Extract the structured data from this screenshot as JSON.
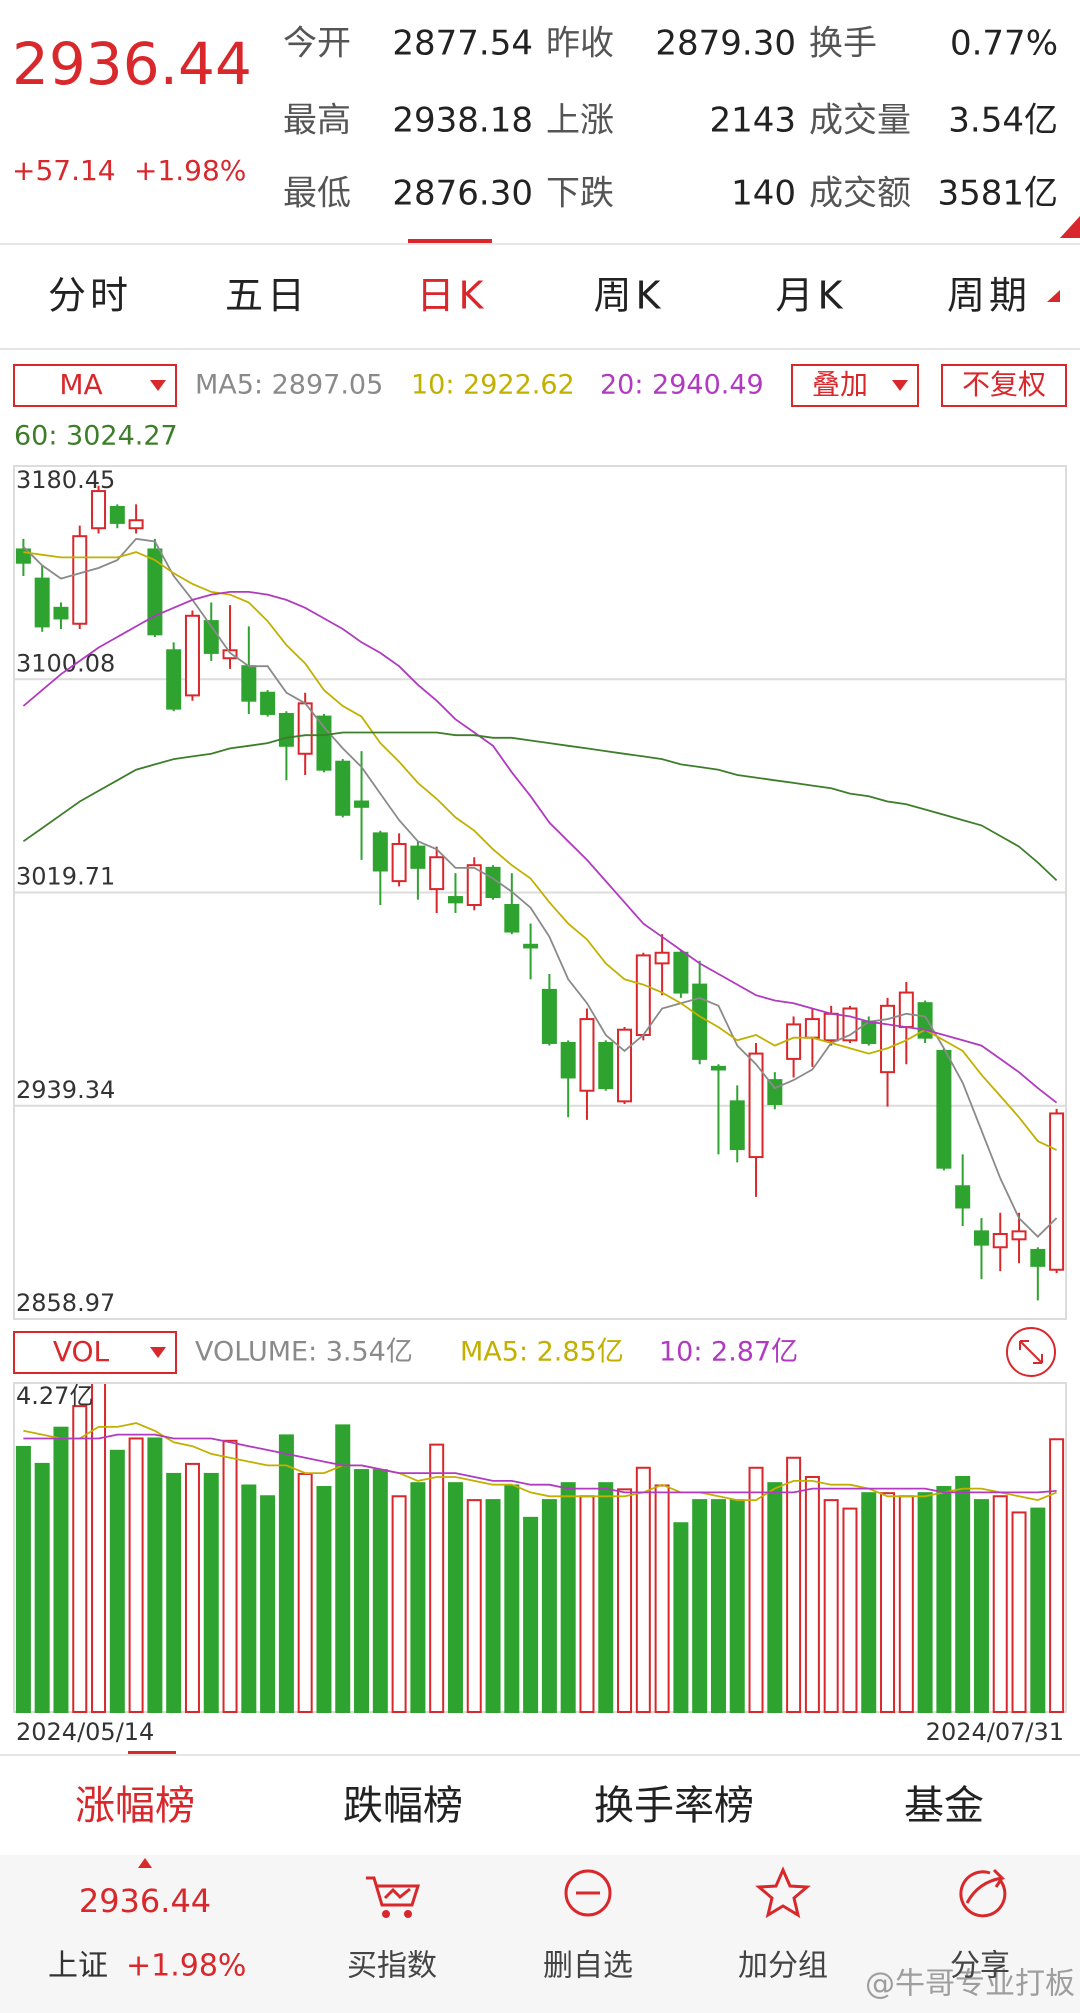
{
  "header": {
    "price": "2936.44",
    "change": "+57.14",
    "change_pct": "+1.98%",
    "stats": [
      [
        [
          "今开",
          "2877.54"
        ],
        [
          "昨收",
          "2879.30"
        ],
        [
          "换手",
          "0.77%"
        ]
      ],
      [
        [
          "最高",
          "2938.18"
        ],
        [
          "上涨",
          "2143"
        ],
        [
          "成交量",
          "3.54亿"
        ]
      ],
      [
        [
          "最低",
          "2876.30"
        ],
        [
          "下跌",
          "140"
        ],
        [
          "成交额",
          "3581亿"
        ]
      ]
    ]
  },
  "tabs": {
    "items": [
      "分时",
      "五日",
      "日K",
      "周K",
      "月K",
      "周期"
    ],
    "active": 2
  },
  "controls": {
    "indicator": "MA",
    "overlay": "叠加",
    "adjust": "不复权",
    "volume_indicator": "VOL"
  },
  "chart_data": [
    {
      "type": "candlestick",
      "up_color": "#d8282c",
      "down_color": "#2fa32f",
      "grid": true,
      "categories": [
        "2024/05/14",
        null,
        null,
        null,
        null,
        null,
        null,
        null,
        null,
        null,
        null,
        null,
        null,
        null,
        null,
        null,
        null,
        null,
        null,
        null,
        null,
        null,
        null,
        null,
        null,
        null,
        null,
        null,
        null,
        null,
        null,
        null,
        null,
        null,
        null,
        null,
        null,
        null,
        null,
        null,
        null,
        null,
        null,
        null,
        null,
        null,
        null,
        null,
        null,
        null,
        null,
        null,
        null,
        null,
        null,
        "2024/07/31"
      ],
      "open": [
        3149,
        3138,
        3127,
        3121,
        3157,
        3165,
        3157,
        3149,
        3111,
        3094,
        3122,
        3108,
        3105,
        3095,
        3087,
        3072,
        3086,
        3069,
        3054,
        3042,
        3024,
        3037,
        3021,
        3018,
        3015,
        3029,
        3015,
        3000,
        2983,
        2963,
        2945,
        2963,
        2941,
        2966,
        2993,
        2997,
        2985,
        2954,
        2941,
        2920,
        2949,
        2957,
        2965,
        2964,
        2964,
        2971,
        2952,
        2969,
        2978,
        2960,
        2909,
        2892,
        2886,
        2889,
        2885,
        2877.54
      ],
      "high": [
        3153,
        3143,
        3129,
        3158,
        3173,
        3166,
        3166,
        3153,
        3114,
        3126,
        3129,
        3128,
        3120,
        3096,
        3088,
        3095,
        3087,
        3070,
        3073,
        3043,
        3042,
        3039,
        3037,
        3027,
        3033,
        3030,
        3027,
        3008,
        2989,
        2964,
        2976,
        2964,
        2969,
        2997,
        3004,
        2998,
        2994,
        2955,
        2947,
        2963,
        2952,
        2973,
        2976,
        2977,
        2977,
        2973,
        2980,
        2986,
        2979,
        2961,
        2921,
        2897,
        2899,
        2899,
        2886,
        2938.18
      ],
      "low": [
        3139,
        3118,
        3119,
        3119,
        3155,
        3157,
        3155,
        3116,
        3088,
        3092,
        3107,
        3104,
        3087,
        3086,
        3062,
        3064,
        3065,
        3048,
        3032,
        3015,
        3022,
        3017,
        3012,
        3012,
        3013,
        3017,
        3004,
        2987,
        2962,
        2935,
        2934,
        2945,
        2940,
        2964,
        2981,
        2980,
        2955,
        2921,
        2918,
        2905,
        2938,
        2950,
        2954,
        2962,
        2963,
        2962,
        2939,
        2955,
        2963,
        2915,
        2894,
        2874,
        2877,
        2880,
        2866,
        2876.3
      ],
      "close": [
        3144,
        3120,
        3123,
        3154,
        3171,
        3159,
        3160,
        3117,
        3089,
        3124,
        3110,
        3111,
        3092,
        3087,
        3075,
        3091,
        3066,
        3049,
        3052,
        3028,
        3038,
        3029,
        3033,
        3016,
        3030,
        3018,
        3005,
        2999,
        2963,
        2950,
        2972,
        2946,
        2968,
        2996,
        2997,
        2982,
        2957,
        2953,
        2923,
        2959,
        2940,
        2970,
        2972,
        2974,
        2976,
        2963,
        2977,
        2982,
        2965,
        2916,
        2901,
        2887,
        2891,
        2892,
        2879,
        2936.44
      ],
      "ylim": [
        2858.97,
        3180.45
      ],
      "yticks": [
        2858.97,
        2939.34,
        3019.71,
        3100.08,
        3180.45
      ],
      "series": [
        {
          "name": "MA5: 2897.05",
          "color": "#8a8a8a",
          "values": [
            3150,
            3143,
            3138,
            3140,
            3142,
            3145,
            3153,
            3152,
            3139,
            3130,
            3120,
            3110,
            3105,
            3105,
            3095,
            3091,
            3082,
            3074,
            3067,
            3057,
            3047,
            3039,
            3036,
            3029,
            3029,
            3025,
            3020,
            3014,
            3003,
            2987,
            2978,
            2966,
            2960,
            2966,
            2976,
            2978,
            2980,
            2977,
            2962,
            2955,
            2946,
            2949,
            2953,
            2963,
            2966,
            2971,
            2972,
            2974,
            2973,
            2961,
            2948,
            2930,
            2912,
            2897,
            2890,
            2897.05
          ]
        },
        {
          "name": "10: 2922.62",
          "color": "#c2b000",
          "values": [
            3148,
            3147,
            3146,
            3146,
            3146,
            3146,
            3148,
            3145,
            3140,
            3136,
            3133,
            3132,
            3129,
            3122,
            3113,
            3106,
            3096,
            3090,
            3086,
            3076,
            3069,
            3061,
            3055,
            3048,
            3043,
            3036,
            3030,
            3025,
            3016,
            3008,
            3002,
            2993,
            2987,
            2985,
            2982,
            2978,
            2973,
            2969,
            2964,
            2966,
            2962,
            2965,
            2965,
            2963,
            2961,
            2959,
            2961,
            2964,
            2968,
            2964,
            2960,
            2951,
            2943,
            2935,
            2926,
            2922.62
          ]
        },
        {
          "name": "20: 2940.49",
          "color": "#b03ac0",
          "values": [
            3090,
            3096,
            3102,
            3107,
            3112,
            3116,
            3120,
            3124,
            3127,
            3130,
            3132,
            3133,
            3133,
            3132,
            3130,
            3127,
            3123,
            3119,
            3114,
            3110,
            3105,
            3098,
            3092,
            3085,
            3080,
            3075,
            3065,
            3056,
            3046,
            3039,
            3032,
            3024,
            3016,
            3008,
            3003,
            2998,
            2993,
            2989,
            2985,
            2981,
            2979,
            2978,
            2976,
            2974,
            2973,
            2971,
            2970,
            2969,
            2968,
            2966,
            2964,
            2962,
            2957,
            2952,
            2946,
            2940.49
          ]
        },
        {
          "name": "60: 3024.27",
          "color": "#3e7d2a",
          "values": [
            3039,
            3044,
            3049,
            3054,
            3058,
            3062,
            3066,
            3068,
            3070,
            3071,
            3072,
            3074,
            3075,
            3076,
            3078,
            3079,
            3079,
            3080,
            3080,
            3080,
            3080,
            3080,
            3080,
            3079,
            3079,
            3078,
            3078,
            3077,
            3076,
            3075,
            3074,
            3073,
            3072,
            3071,
            3070,
            3068,
            3067,
            3066,
            3064,
            3063,
            3062,
            3061,
            3060,
            3059,
            3057,
            3056,
            3054,
            3053,
            3051,
            3049,
            3047,
            3045,
            3041,
            3037,
            3031,
            3024.27
          ]
        }
      ]
    },
    {
      "type": "bar",
      "name": "VOLUME: 3.54亿",
      "ylim": [
        0,
        4.27
      ],
      "yticks": [
        {
          "value": 4.27,
          "label": "4.27亿"
        }
      ],
      "values": [
        3.44,
        3.22,
        3.69,
        3.97,
        4.27,
        3.39,
        3.55,
        3.55,
        3.09,
        3.22,
        3.09,
        3.52,
        2.94,
        2.8,
        3.59,
        3.09,
        2.92,
        3.72,
        3.14,
        3.14,
        2.8,
        2.97,
        3.47,
        2.97,
        2.75,
        2.75,
        2.94,
        2.52,
        2.75,
        2.97,
        2.8,
        2.97,
        2.89,
        3.17,
        2.94,
        2.45,
        2.75,
        2.75,
        2.75,
        3.17,
        2.97,
        3.3,
        3.05,
        2.75,
        2.64,
        2.84,
        2.84,
        2.8,
        2.84,
        2.92,
        3.05,
        2.75,
        2.8,
        2.59,
        2.64,
        3.54
      ],
      "series": [
        {
          "name": "MA5: 2.85亿",
          "color": "#c2b000",
          "values": [
            3.65,
            3.6,
            3.55,
            3.55,
            3.7,
            3.7,
            3.75,
            3.65,
            3.5,
            3.45,
            3.35,
            3.3,
            3.25,
            3.2,
            3.2,
            3.1,
            3.1,
            3.2,
            3.2,
            3.15,
            3.1,
            3.0,
            3.05,
            3.05,
            3.0,
            2.95,
            2.95,
            2.85,
            2.8,
            2.8,
            2.8,
            2.8,
            2.8,
            2.85,
            2.95,
            2.85,
            2.85,
            2.8,
            2.75,
            2.75,
            2.9,
            3.0,
            3.0,
            2.95,
            2.95,
            2.9,
            2.8,
            2.8,
            2.8,
            2.85,
            2.9,
            2.9,
            2.85,
            2.8,
            2.75,
            2.85
          ]
        },
        {
          "name": "10: 2.87亿",
          "color": "#b03ac0",
          "values": [
            3.55,
            3.55,
            3.55,
            3.55,
            3.55,
            3.6,
            3.6,
            3.6,
            3.55,
            3.55,
            3.55,
            3.5,
            3.45,
            3.4,
            3.35,
            3.3,
            3.25,
            3.2,
            3.2,
            3.15,
            3.1,
            3.1,
            3.1,
            3.1,
            3.05,
            3.0,
            3.0,
            2.95,
            2.95,
            2.9,
            2.9,
            2.9,
            2.85,
            2.85,
            2.85,
            2.85,
            2.85,
            2.85,
            2.85,
            2.85,
            2.85,
            2.85,
            2.9,
            2.9,
            2.9,
            2.9,
            2.9,
            2.9,
            2.9,
            2.85,
            2.85,
            2.85,
            2.85,
            2.85,
            2.85,
            2.87
          ]
        }
      ]
    }
  ],
  "bottom_tabs": {
    "items": [
      "涨幅榜",
      "跌幅榜",
      "换手率榜",
      "基金"
    ],
    "active": 0
  },
  "footer": {
    "index_price": "2936.44",
    "index_name": "上证",
    "index_change": "+1.98%",
    "actions": [
      "买指数",
      "删自选",
      "加分组",
      "分享"
    ]
  },
  "watermark": "@牛哥专业打板"
}
